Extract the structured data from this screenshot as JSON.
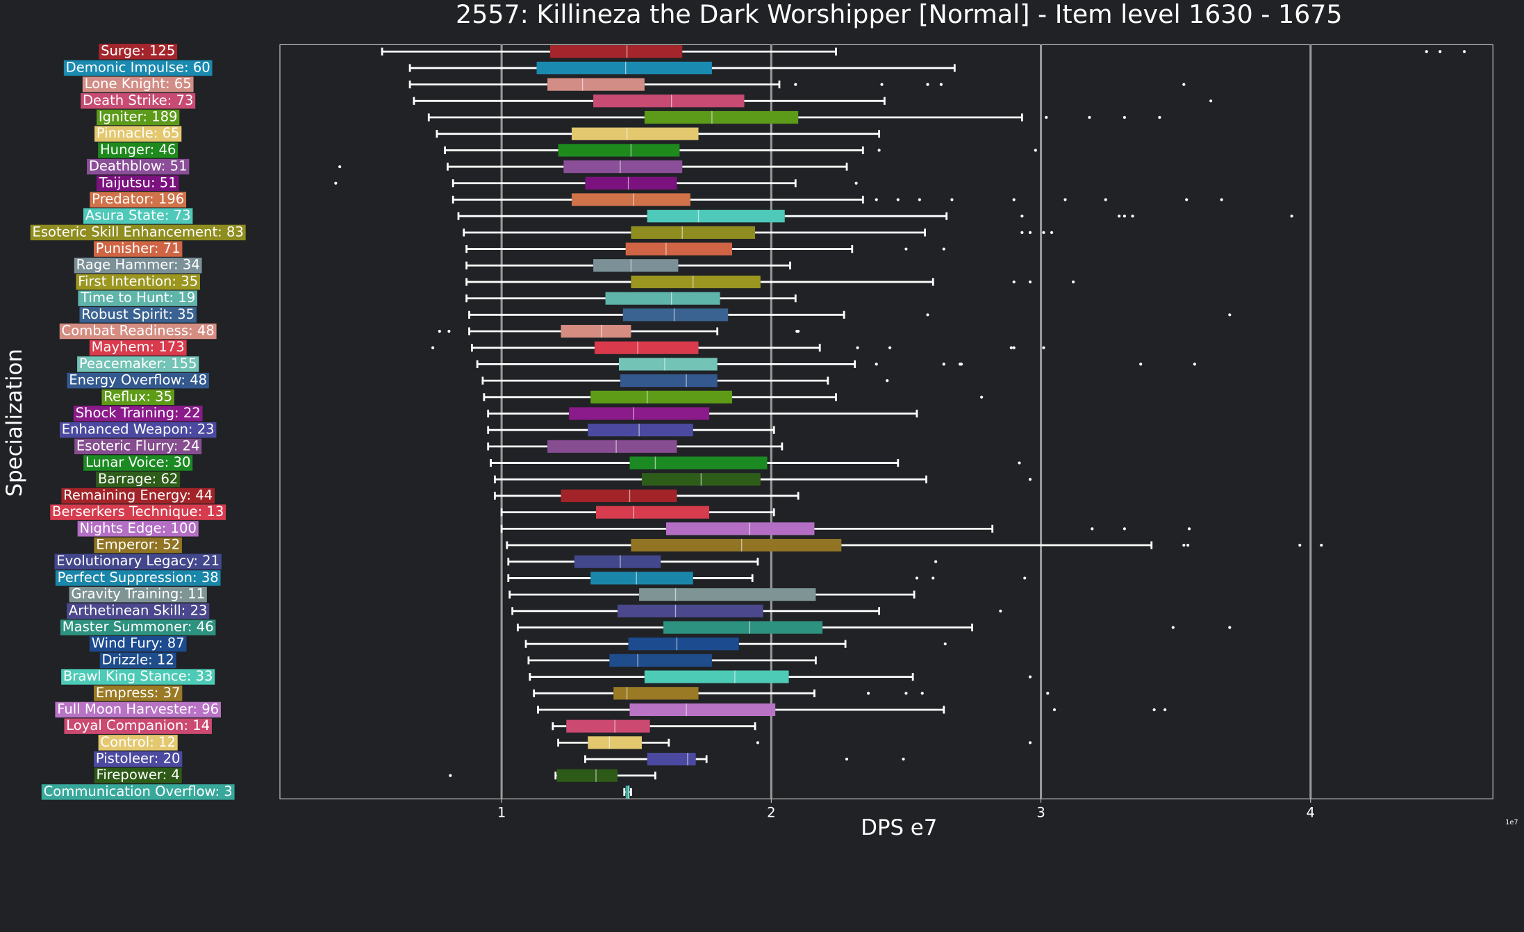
{
  "chart_data": {
    "type": "boxplot",
    "title": "2557: Killineza the Dark Worshipper [Normal] - Item level 1630 - 1675",
    "x_label": "DPS e7",
    "y_label": "Specialization",
    "x_offset_label": "1e7",
    "xlim": [
      0.178,
      4.676
    ],
    "xticks": [
      1,
      2,
      3,
      4
    ],
    "grid": true,
    "categories": [
      "Surge: 125",
      "Demonic Impulse: 60",
      "Lone Knight: 65",
      "Death Strike: 73",
      "Igniter: 189",
      "Pinnacle: 65",
      "Hunger: 46",
      "Deathblow: 51",
      "Taijutsu: 51",
      "Predator: 196",
      "Asura State: 73",
      "Esoteric Skill Enhancement: 83",
      "Punisher: 71",
      "Rage Hammer: 34",
      "First Intention: 35",
      "Time to Hunt: 19",
      "Robust Spirit: 35",
      "Combat Readiness: 48",
      "Mayhem: 173",
      "Peacemaker: 155",
      "Energy Overflow: 48",
      "Reflux: 35",
      "Shock Training: 22",
      "Enhanced Weapon: 23",
      "Esoteric Flurry: 24",
      "Lunar Voice: 30",
      "Barrage: 62",
      "Remaining Energy: 44",
      "Berserkers Technique: 13",
      "Nights Edge: 100",
      "Emperor: 52",
      "Evolutionary Legacy: 21",
      "Perfect Suppression: 38",
      "Gravity Training: 11",
      "Arthetinean Skill: 23",
      "Master Summoner: 46",
      "Wind Fury: 87",
      "Drizzle: 12",
      "Brawl King Stance: 33",
      "Empress: 37",
      "Full Moon Harvester: 96",
      "Loyal Companion: 14",
      "Control: 12",
      "Pistoleer: 20",
      "Firepower: 4",
      "Communication Overflow: 3"
    ],
    "colors": [
      "#a4262c",
      "#1a8ab0",
      "#d28e86",
      "#c74b73",
      "#5c9a1a",
      "#e3c86f",
      "#1e8a1e",
      "#8b4e98",
      "#7b127f",
      "#d0734a",
      "#4fc9b9",
      "#8f8d1f",
      "#cf6545",
      "#7c9098",
      "#9a9620",
      "#5fb5aa",
      "#3a6391",
      "#d58d82",
      "#d93a4c",
      "#73c3b6",
      "#33598f",
      "#5e9c18",
      "#8b1a8b",
      "#4b4aa0",
      "#864e90",
      "#1b8a22",
      "#2e5d1a",
      "#a22428",
      "#d63c4e",
      "#b46fc5",
      "#917424",
      "#43478c",
      "#1a86aa",
      "#7f9494",
      "#4b488e",
      "#2e9280",
      "#1c4b90",
      "#1f4d8c",
      "#4dcbb6",
      "#9b7a25",
      "#b873c5",
      "#cc4a72",
      "#e3c86f",
      "#4c4aa0",
      "#2e5a18",
      "#38a89b"
    ],
    "boxes": [
      {
        "low": 0.557,
        "q1": 1.18,
        "median": 1.465,
        "q3": 1.67,
        "high": 2.24,
        "outliers": [
          4.43,
          4.48,
          4.57
        ]
      },
      {
        "low": 0.66,
        "q1": 1.13,
        "median": 1.46,
        "q3": 1.78,
        "high": 2.68,
        "outliers": []
      },
      {
        "low": 0.66,
        "q1": 1.17,
        "median": 1.3,
        "q3": 1.53,
        "high": 2.03,
        "outliers": [
          2.09,
          2.41,
          2.58,
          2.63,
          3.53
        ]
      },
      {
        "low": 0.675,
        "q1": 1.34,
        "median": 1.63,
        "q3": 1.9,
        "high": 2.42,
        "outliers": [
          3.63
        ]
      },
      {
        "low": 0.73,
        "q1": 1.53,
        "median": 1.78,
        "q3": 2.1,
        "high": 2.93,
        "outliers": [
          3.02,
          3.18,
          3.31,
          3.44
        ]
      },
      {
        "low": 0.76,
        "q1": 1.26,
        "median": 1.465,
        "q3": 1.73,
        "high": 2.4,
        "outliers": []
      },
      {
        "low": 0.79,
        "q1": 1.21,
        "median": 1.48,
        "q3": 1.66,
        "high": 2.34,
        "outliers": [
          2.4,
          2.98
        ]
      },
      {
        "low": 0.8,
        "q1": 1.23,
        "median": 1.44,
        "q3": 1.67,
        "high": 2.28,
        "outliers": [
          0.4
        ]
      },
      {
        "low": 0.82,
        "q1": 1.31,
        "median": 1.47,
        "q3": 1.65,
        "high": 2.09,
        "outliers": [
          0.385,
          2.315
        ]
      },
      {
        "low": 0.82,
        "q1": 1.26,
        "median": 1.49,
        "q3": 1.7,
        "high": 2.34,
        "outliers": [
          2.39,
          2.47,
          2.55,
          2.67,
          2.9,
          3.09,
          3.24,
          3.54,
          3.67
        ]
      },
      {
        "low": 0.84,
        "q1": 1.54,
        "median": 1.73,
        "q3": 2.05,
        "high": 2.65,
        "outliers": [
          2.93,
          3.29,
          3.31,
          3.34,
          3.93
        ]
      },
      {
        "low": 0.86,
        "q1": 1.48,
        "median": 1.67,
        "q3": 1.94,
        "high": 2.57,
        "outliers": [
          2.93,
          2.96,
          3.01,
          3.04
        ]
      },
      {
        "low": 0.87,
        "q1": 1.46,
        "median": 1.61,
        "q3": 1.855,
        "high": 2.3,
        "outliers": [
          2.5,
          2.64
        ]
      },
      {
        "low": 0.87,
        "q1": 1.34,
        "median": 1.48,
        "q3": 1.655,
        "high": 2.07,
        "outliers": []
      },
      {
        "low": 0.87,
        "q1": 1.48,
        "median": 1.71,
        "q3": 1.96,
        "high": 2.6,
        "outliers": [
          2.9,
          2.96,
          3.12
        ]
      },
      {
        "low": 0.87,
        "q1": 1.385,
        "median": 1.63,
        "q3": 1.81,
        "high": 2.09,
        "outliers": []
      },
      {
        "low": 0.88,
        "q1": 1.45,
        "median": 1.64,
        "q3": 1.84,
        "high": 2.27,
        "outliers": [
          2.58,
          3.7
        ]
      },
      {
        "low": 0.88,
        "q1": 1.22,
        "median": 1.37,
        "q3": 1.48,
        "high": 1.8,
        "outliers": [
          0.77,
          0.805,
          2.095,
          2.1
        ]
      },
      {
        "low": 0.89,
        "q1": 1.345,
        "median": 1.505,
        "q3": 1.73,
        "high": 2.18,
        "outliers": [
          0.745,
          2.32,
          2.44,
          2.89,
          2.9,
          3.01
        ]
      },
      {
        "low": 0.91,
        "q1": 1.435,
        "median": 1.605,
        "q3": 1.8,
        "high": 2.31,
        "outliers": [
          2.39,
          2.64,
          2.7,
          2.705,
          3.37,
          3.57
        ]
      },
      {
        "low": 0.93,
        "q1": 1.44,
        "median": 1.685,
        "q3": 1.8,
        "high": 2.21,
        "outliers": [
          2.43
        ]
      },
      {
        "low": 0.935,
        "q1": 1.33,
        "median": 1.54,
        "q3": 1.855,
        "high": 2.24,
        "outliers": [
          2.78
        ]
      },
      {
        "low": 0.95,
        "q1": 1.25,
        "median": 1.49,
        "q3": 1.77,
        "high": 2.54,
        "outliers": []
      },
      {
        "low": 0.95,
        "q1": 1.32,
        "median": 1.51,
        "q3": 1.71,
        "high": 2.01,
        "outliers": []
      },
      {
        "low": 0.95,
        "q1": 1.17,
        "median": 1.425,
        "q3": 1.65,
        "high": 2.04,
        "outliers": []
      },
      {
        "low": 0.96,
        "q1": 1.475,
        "median": 1.57,
        "q3": 1.985,
        "high": 2.47,
        "outliers": [
          2.92
        ]
      },
      {
        "low": 0.975,
        "q1": 1.52,
        "median": 1.74,
        "q3": 1.96,
        "high": 2.575,
        "outliers": [
          2.96
        ]
      },
      {
        "low": 0.975,
        "q1": 1.22,
        "median": 1.475,
        "q3": 1.65,
        "high": 2.1,
        "outliers": []
      },
      {
        "low": 1.0,
        "q1": 1.35,
        "median": 1.49,
        "q3": 1.77,
        "high": 2.01,
        "outliers": []
      },
      {
        "low": 1.0,
        "q1": 1.61,
        "median": 1.92,
        "q3": 2.16,
        "high": 2.82,
        "outliers": [
          3.19,
          3.31,
          3.55
        ]
      },
      {
        "low": 1.02,
        "q1": 1.48,
        "median": 1.89,
        "q3": 2.26,
        "high": 3.41,
        "outliers": [
          3.53,
          3.545,
          3.96,
          4.04
        ]
      },
      {
        "low": 1.025,
        "q1": 1.27,
        "median": 1.44,
        "q3": 1.59,
        "high": 1.95,
        "outliers": [
          2.61
        ]
      },
      {
        "low": 1.025,
        "q1": 1.33,
        "median": 1.5,
        "q3": 1.71,
        "high": 1.93,
        "outliers": [
          2.54,
          2.6,
          2.94
        ]
      },
      {
        "low": 1.03,
        "q1": 1.51,
        "median": 1.645,
        "q3": 2.165,
        "high": 2.53,
        "outliers": []
      },
      {
        "low": 1.04,
        "q1": 1.43,
        "median": 1.645,
        "q3": 1.97,
        "high": 2.4,
        "outliers": [
          2.85
        ]
      },
      {
        "low": 1.06,
        "q1": 1.6,
        "median": 1.92,
        "q3": 2.19,
        "high": 2.745,
        "outliers": [
          3.49,
          3.7
        ]
      },
      {
        "low": 1.09,
        "q1": 1.47,
        "median": 1.65,
        "q3": 1.88,
        "high": 2.275,
        "outliers": [
          2.645
        ]
      },
      {
        "low": 1.1,
        "q1": 1.4,
        "median": 1.505,
        "q3": 1.78,
        "high": 2.165,
        "outliers": []
      },
      {
        "low": 1.105,
        "q1": 1.53,
        "median": 1.865,
        "q3": 2.065,
        "high": 2.525,
        "outliers": [
          2.96
        ]
      },
      {
        "low": 1.12,
        "q1": 1.415,
        "median": 1.465,
        "q3": 1.73,
        "high": 2.16,
        "outliers": [
          2.36,
          2.5,
          2.56,
          3.025
        ]
      },
      {
        "low": 1.135,
        "q1": 1.475,
        "median": 1.685,
        "q3": 2.015,
        "high": 2.64,
        "outliers": [
          3.05,
          3.42,
          3.46
        ]
      },
      {
        "low": 1.19,
        "q1": 1.24,
        "median": 1.42,
        "q3": 1.55,
        "high": 1.94,
        "outliers": []
      },
      {
        "low": 1.21,
        "q1": 1.32,
        "median": 1.4,
        "q3": 1.52,
        "high": 1.62,
        "outliers": [
          1.95,
          2.96
        ]
      },
      {
        "low": 1.31,
        "q1": 1.54,
        "median": 1.69,
        "q3": 1.72,
        "high": 1.76,
        "outliers": [
          2.28,
          2.49
        ]
      },
      {
        "low": 1.2,
        "q1": 1.205,
        "median": 1.35,
        "q3": 1.43,
        "high": 1.57,
        "outliers": [
          0.81
        ]
      },
      {
        "low": 1.455,
        "q1": 1.46,
        "median": 1.47,
        "q3": 1.475,
        "high": 1.48,
        "outliers": []
      }
    ]
  }
}
